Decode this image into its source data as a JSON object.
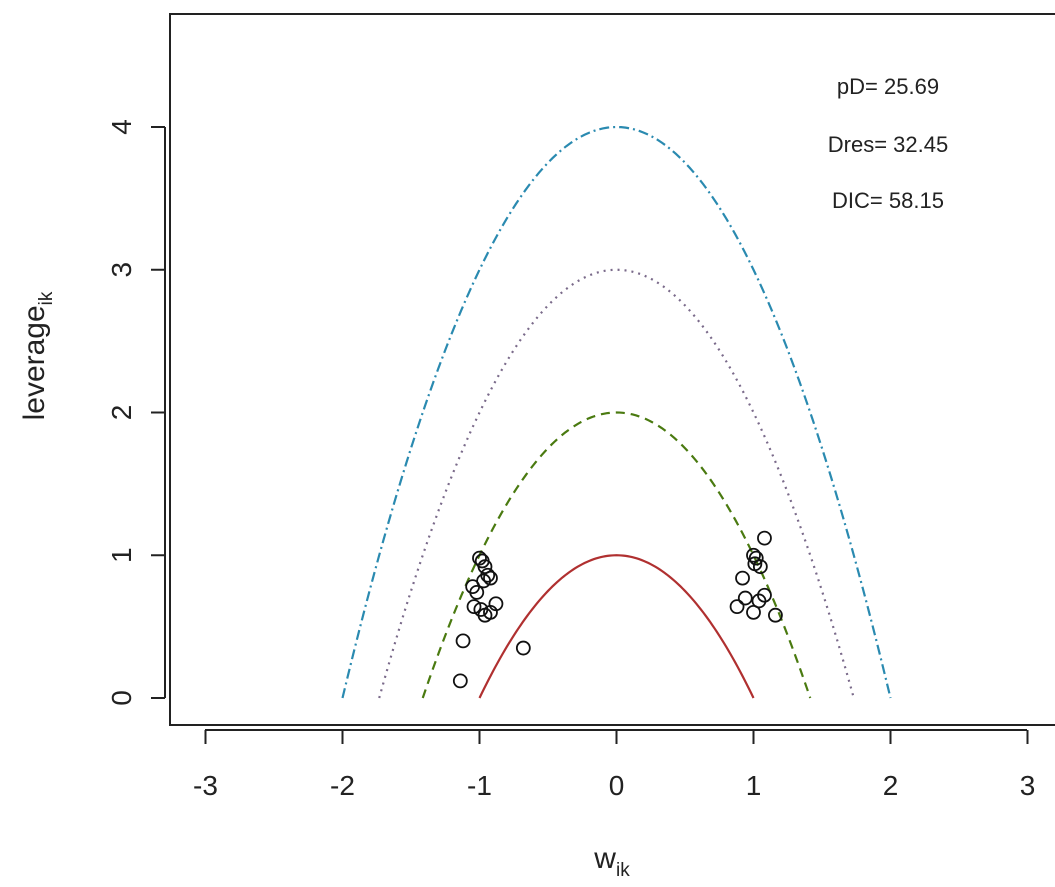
{
  "chart_data": {
    "type": "scatter",
    "xlabel": "w",
    "xlabel_sub": "ik",
    "ylabel": "leverage",
    "ylabel_sub": "ik",
    "xlim": [
      -3,
      3
    ],
    "ylim": [
      0,
      4
    ],
    "x_ticks": [
      -3,
      -2,
      -1,
      0,
      1,
      2,
      3
    ],
    "y_ticks": [
      0,
      1,
      2,
      3,
      4
    ],
    "grid": false,
    "annotations": {
      "pD": "pD= 25.69",
      "Dres": "Dres= 32.45",
      "DIC": "DIC= 58.15"
    },
    "curves": [
      {
        "c": 1,
        "color": "#b03030",
        "style": "solid"
      },
      {
        "c": 2,
        "color": "#4a7a10",
        "style": "dashed"
      },
      {
        "c": 3,
        "color": "#7a6a8a",
        "style": "dotted"
      },
      {
        "c": 4,
        "color": "#2a8ab0",
        "style": "dotdash"
      }
    ],
    "points": [
      {
        "x": -1.0,
        "y": 0.98
      },
      {
        "x": -0.98,
        "y": 0.96
      },
      {
        "x": -0.96,
        "y": 0.92
      },
      {
        "x": -0.94,
        "y": 0.86
      },
      {
        "x": -0.92,
        "y": 0.84
      },
      {
        "x": -0.97,
        "y": 0.82
      },
      {
        "x": -1.05,
        "y": 0.78
      },
      {
        "x": -1.02,
        "y": 0.74
      },
      {
        "x": -1.04,
        "y": 0.64
      },
      {
        "x": -0.99,
        "y": 0.62
      },
      {
        "x": -0.96,
        "y": 0.58
      },
      {
        "x": -0.92,
        "y": 0.6
      },
      {
        "x": -0.88,
        "y": 0.66
      },
      {
        "x": -1.12,
        "y": 0.4
      },
      {
        "x": -0.68,
        "y": 0.35
      },
      {
        "x": -1.14,
        "y": 0.12
      },
      {
        "x": 1.0,
        "y": 1.0
      },
      {
        "x": 1.02,
        "y": 0.98
      },
      {
        "x": 1.08,
        "y": 1.12
      },
      {
        "x": 1.01,
        "y": 0.94
      },
      {
        "x": 1.05,
        "y": 0.92
      },
      {
        "x": 0.92,
        "y": 0.84
      },
      {
        "x": 1.08,
        "y": 0.72
      },
      {
        "x": 1.04,
        "y": 0.68
      },
      {
        "x": 0.94,
        "y": 0.7
      },
      {
        "x": 0.88,
        "y": 0.64
      },
      {
        "x": 1.0,
        "y": 0.6
      },
      {
        "x": 1.16,
        "y": 0.58
      }
    ]
  }
}
